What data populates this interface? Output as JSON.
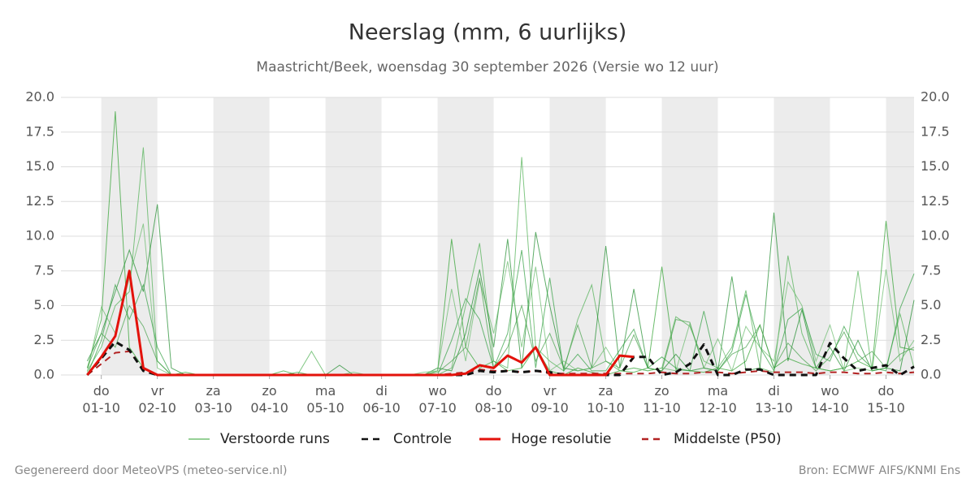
{
  "chart_data": {
    "type": "line",
    "title": "Neerslag (mm, 6 uurlijks)",
    "subtitle": "Maastricht/Beek, woensdag 30 september 2026 (Versie wo 12 uur)",
    "footer_left": "Gegenereerd door MeteoVPS (meteo-service.nl)",
    "footer_right": "Bron: ECMWF AIFS/KNMI Ens",
    "x": [
      0.75,
      1,
      1.25,
      1.5,
      1.75,
      2,
      2.25,
      2.5,
      2.75,
      3,
      3.25,
      3.5,
      3.75,
      4,
      4.25,
      4.5,
      4.75,
      5,
      5.25,
      5.5,
      5.75,
      6,
      6.25,
      6.5,
      6.75,
      7,
      7.25,
      7.5,
      7.75,
      8,
      8.25,
      8.5,
      8.75,
      9,
      9.25,
      9.5,
      9.75,
      10,
      10.25,
      10.5,
      10.75,
      11,
      11.25,
      11.5,
      11.75,
      12,
      12.25,
      12.5,
      12.75,
      13,
      13.25,
      13.5,
      13.75,
      14,
      14.25,
      14.5,
      14.75,
      15,
      15.25,
      15.5
    ],
    "xlim": [
      0.28,
      15.5
    ],
    "xticks": [
      {
        "value": 1,
        "label": "do 01-10"
      },
      {
        "value": 2,
        "label": "vr 02-10"
      },
      {
        "value": 3,
        "label": "za 03-10"
      },
      {
        "value": 4,
        "label": "zo 04-10"
      },
      {
        "value": 5,
        "label": "ma 05-10"
      },
      {
        "value": 6,
        "label": "di 06-10"
      },
      {
        "value": 7,
        "label": "wo 07-10"
      },
      {
        "value": 8,
        "label": "do 08-10"
      },
      {
        "value": 9,
        "label": "vr 09-10"
      },
      {
        "value": 10,
        "label": "za 10-10"
      },
      {
        "value": 11,
        "label": "zo 11-10"
      },
      {
        "value": 12,
        "label": "ma 12-10"
      },
      {
        "value": 13,
        "label": "di 13-10"
      },
      {
        "value": 14,
        "label": "wo 14-10"
      },
      {
        "value": 15,
        "label": "do 15-10"
      }
    ],
    "ylim": [
      0,
      20
    ],
    "yticks": [
      {
        "value": 0,
        "label": "0.0"
      },
      2.5,
      {
        "value": 5,
        "label": "5.0"
      },
      7.5,
      {
        "value": 10,
        "label": "10.0"
      },
      12.5,
      {
        "value": 15,
        "label": "15.0"
      },
      17.5,
      {
        "value": 20,
        "label": "20.0"
      }
    ],
    "grid": true,
    "shade_color": "#ececec",
    "ensemble": {
      "name": "Verstoorde runs",
      "color": "#2ca02c",
      "runs": [
        [
          0.5,
          4.0,
          19.0,
          2.0,
          0.5,
          0,
          0,
          0.2,
          0,
          0,
          0,
          0,
          0,
          0,
          0.3,
          0,
          0,
          0,
          0,
          0,
          0,
          0,
          0,
          0,
          0,
          0.3,
          9.8,
          2.0,
          0.5,
          1.0,
          0.3,
          0.5,
          2.0,
          0.3,
          0,
          0.5,
          0.2,
          0,
          0.3,
          0.2,
          0.5,
          7.8,
          0.4,
          0.3,
          0.2,
          0.5,
          0.3,
          1.0,
          3.6,
          0.5,
          1.2,
          0.8,
          0.5,
          0.3,
          0.5,
          1.0,
          0.5,
          11.1,
          2.0,
          1.8
        ],
        [
          0.3,
          2.0,
          5.0,
          6.0,
          16.4,
          1.0,
          0,
          0,
          0,
          0,
          0,
          0,
          0,
          0,
          0,
          0,
          1.7,
          0,
          0,
          0,
          0,
          0,
          0,
          0,
          0,
          0,
          0.5,
          5.0,
          9.5,
          1.0,
          0.5,
          15.7,
          2.0,
          1.0,
          0.3,
          4.0,
          6.5,
          1.0,
          0.3,
          0.5,
          0.3,
          0.5,
          4.2,
          3.5,
          1.0,
          0.5,
          2.0,
          6.1,
          0.5,
          0.2,
          8.6,
          3.0,
          0.5,
          0.3,
          0.5,
          7.5,
          0.3,
          0.5,
          4.4,
          0.5
        ],
        [
          1.0,
          3.0,
          6.0,
          9.0,
          6.0,
          12.3,
          0.5,
          0,
          0,
          0,
          0,
          0,
          0,
          0,
          0,
          0,
          0,
          0,
          0.7,
          0,
          0,
          0,
          0,
          0,
          0,
          0.5,
          0.3,
          3.0,
          7.6,
          2.0,
          9.8,
          0.5,
          10.3,
          5.0,
          0.5,
          0.3,
          0.5,
          9.3,
          0.5,
          6.2,
          0.5,
          0.3,
          1.5,
          0.3,
          0.5,
          0.3,
          7.1,
          0.3,
          0.5,
          11.7,
          1.0,
          4.7,
          0.5,
          2.0,
          0.3,
          2.5,
          0.3,
          0.5,
          0.3,
          5.4
        ],
        [
          0.2,
          4.9,
          3.0,
          7.0,
          10.9,
          0.5,
          0,
          0,
          0,
          0,
          0,
          0,
          0,
          0,
          0,
          0,
          0,
          0,
          0,
          0.2,
          0,
          0,
          0,
          0,
          0.2,
          0.3,
          6.2,
          1.0,
          6.8,
          3.0,
          8.2,
          2.0,
          7.8,
          0.3,
          1.0,
          0.3,
          0.5,
          2.0,
          0.3,
          0.5,
          0.3,
          0.5,
          0.3,
          3.7,
          0.5,
          2.6,
          0.3,
          3.5,
          2.0,
          1.0,
          6.7,
          5.0,
          1.0,
          3.6,
          0.3,
          0.5,
          0.3,
          7.6,
          1.0,
          2.5
        ],
        [
          0,
          2.5,
          6.5,
          4.0,
          6.5,
          2.0,
          0,
          0,
          0,
          0,
          0,
          0,
          0,
          0,
          0,
          0.2,
          0,
          0,
          0,
          0,
          0,
          0,
          0,
          0,
          0,
          0,
          2.5,
          5.5,
          4.0,
          0.5,
          3.0,
          9.0,
          0.5,
          7.0,
          0.3,
          1.5,
          0.3,
          0.3,
          1.8,
          3.3,
          0.5,
          1.3,
          0.5,
          0.3,
          4.6,
          0.3,
          1.7,
          5.8,
          2.0,
          0.3,
          4.0,
          4.8,
          1.5,
          1.0,
          3.5,
          1.5,
          0.5,
          0.3,
          4.8,
          7.3
        ],
        [
          0.5,
          3.0,
          2.0,
          5.0,
          3.5,
          1.0,
          0,
          0,
          0,
          0,
          0,
          0,
          0,
          0,
          0,
          0,
          0,
          0,
          0,
          0,
          0,
          0,
          0,
          0,
          0,
          0.2,
          1.0,
          2.0,
          7.0,
          0.5,
          2.0,
          5.0,
          1.0,
          3.0,
          0.5,
          3.6,
          0.5,
          1.0,
          0.5,
          2.9,
          0.5,
          0.3,
          4.0,
          3.8,
          0.5,
          0.3,
          1.5,
          2.0,
          3.6,
          0.5,
          2.3,
          1.2,
          0.3,
          1.3,
          3.1,
          1.0,
          1.7,
          0.5,
          1.5,
          2.0
        ]
      ]
    },
    "series": [
      {
        "name": "Controle",
        "color": "#111111",
        "dash": true,
        "values": [
          0,
          1.2,
          2.4,
          1.8,
          0.3,
          0,
          0,
          0,
          0,
          0,
          0,
          0,
          0,
          0,
          0,
          0,
          0,
          0,
          0,
          0,
          0,
          0,
          0,
          0,
          0,
          0,
          0,
          0,
          0.3,
          0.2,
          0.3,
          0.2,
          0.3,
          0.2,
          0,
          0,
          0,
          0,
          0,
          1.3,
          1.3,
          0,
          0.2,
          0.8,
          2.2,
          0,
          0,
          0.4,
          0.4,
          0,
          0,
          0,
          0,
          2.3,
          1.2,
          0.3,
          0.5,
          0.7,
          0,
          0.6
        ]
      },
      {
        "name": "Hoge resolutie",
        "color": "#e3120b",
        "dash": false,
        "values": [
          0,
          1.3,
          2.8,
          7.5,
          0.5,
          0,
          0,
          0,
          0,
          0,
          0,
          0,
          0,
          0,
          0,
          0,
          0,
          0,
          0,
          0,
          0,
          0,
          0,
          0,
          0,
          0,
          0,
          0.1,
          0.7,
          0.5,
          1.4,
          0.9,
          2.0,
          0,
          0,
          0,
          0,
          0,
          1.4,
          1.3,
          null,
          null,
          null,
          null,
          null,
          null,
          null,
          null,
          null,
          null,
          null,
          null,
          null,
          null,
          null,
          null,
          null,
          null,
          null,
          null
        ]
      },
      {
        "name": "Middelste (P50)",
        "color": "#b22222",
        "dash": true,
        "values": [
          0,
          0.8,
          1.6,
          1.7,
          0.4,
          0,
          0,
          0,
          0,
          0,
          0,
          0,
          0,
          0,
          0,
          0,
          0,
          0,
          0,
          0,
          0,
          0,
          0,
          0,
          0,
          0,
          0.1,
          0.2,
          0.4,
          0.3,
          0.3,
          0.2,
          0.3,
          0.1,
          0.1,
          0.1,
          0.1,
          0.1,
          0.1,
          0.1,
          0.1,
          0.2,
          0.1,
          0.1,
          0.2,
          0.2,
          0.1,
          0.2,
          0.3,
          0.2,
          0.2,
          0.2,
          0.1,
          0.2,
          0.2,
          0.1,
          0.1,
          0.2,
          0.1,
          0.2
        ]
      }
    ]
  }
}
